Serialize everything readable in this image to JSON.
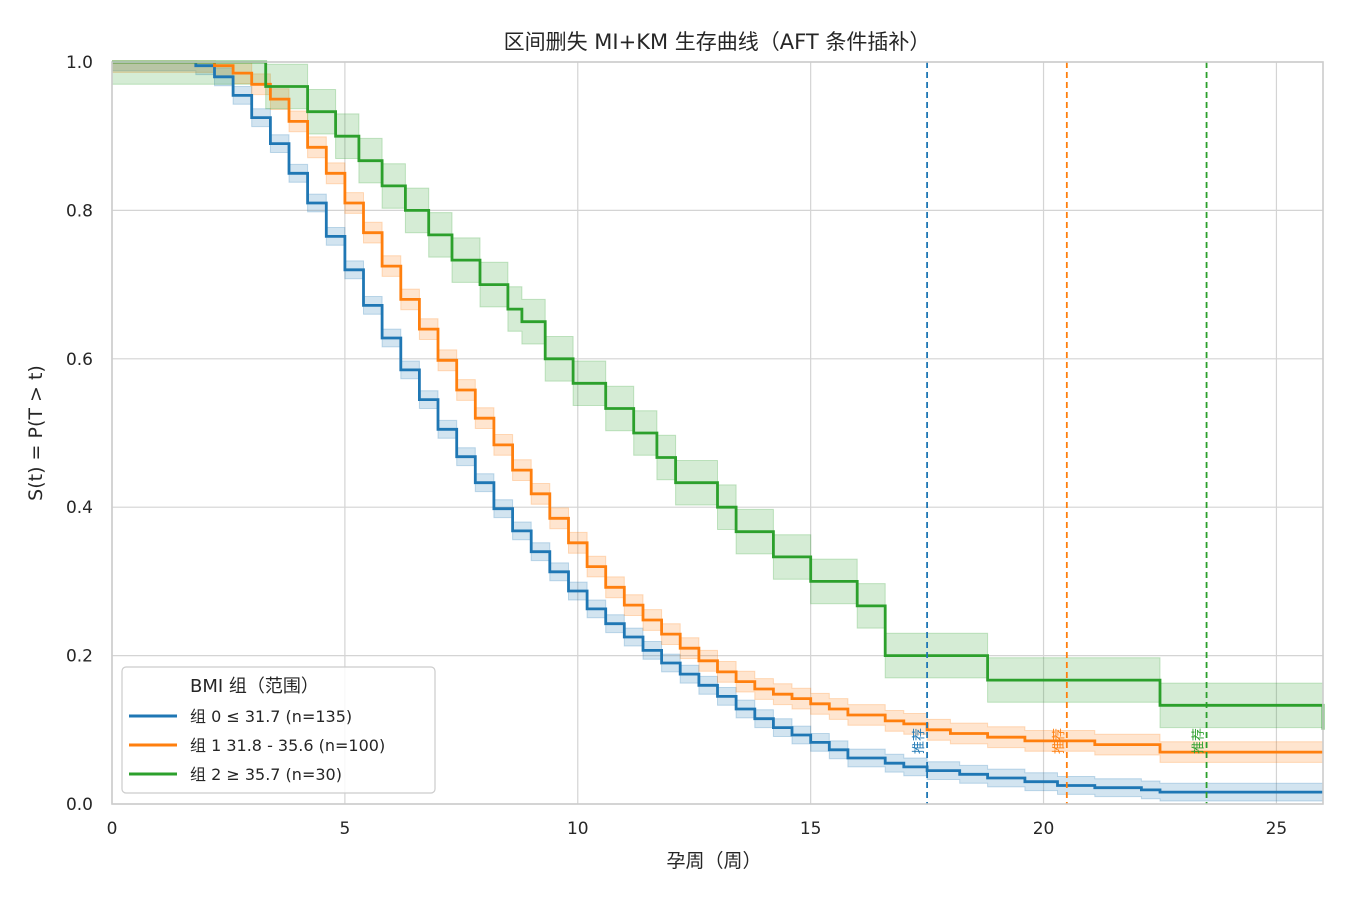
{
  "chart_data": {
    "type": "line",
    "title": "区间删失 MI+KM 生存曲线（AFT 条件插补）",
    "xlabel": "孕周（周）",
    "ylabel": "S(t) = P(T > t)",
    "xlim": [
      0,
      26
    ],
    "ylim": [
      0,
      1.0
    ],
    "xticks": [
      0,
      5,
      10,
      15,
      20,
      25
    ],
    "yticks": [
      0.0,
      0.2,
      0.4,
      0.6,
      0.8,
      1.0
    ],
    "xtick_labels": [
      "0",
      "5",
      "10",
      "15",
      "20",
      "25"
    ],
    "ytick_labels": [
      "0.0",
      "0.2",
      "0.4",
      "0.6",
      "0.8",
      "1.0"
    ],
    "grid": true,
    "legend": {
      "title": "BMI 组（范围）",
      "position": "lower-left"
    },
    "step": true,
    "series": [
      {
        "name": "组 0 ≤ 31.7 (n=135)",
        "color": "#1f77b4",
        "band_halfwidth": 0.012,
        "x": [
          0,
          1.8,
          2.2,
          2.6,
          3.0,
          3.4,
          3.8,
          4.2,
          4.6,
          5.0,
          5.4,
          5.8,
          6.2,
          6.6,
          7.0,
          7.4,
          7.8,
          8.2,
          8.6,
          9.0,
          9.4,
          9.8,
          10.2,
          10.6,
          11.0,
          11.4,
          11.8,
          12.2,
          12.6,
          13.0,
          13.4,
          13.8,
          14.2,
          14.6,
          15.0,
          15.4,
          15.8,
          16.6,
          17.0,
          17.5,
          18.2,
          18.8,
          19.6,
          20.3,
          21.1,
          22.1,
          22.5,
          26.0
        ],
        "y": [
          1.0,
          0.995,
          0.98,
          0.955,
          0.925,
          0.89,
          0.85,
          0.81,
          0.765,
          0.72,
          0.672,
          0.628,
          0.585,
          0.545,
          0.505,
          0.468,
          0.433,
          0.398,
          0.368,
          0.34,
          0.313,
          0.287,
          0.263,
          0.243,
          0.225,
          0.207,
          0.19,
          0.175,
          0.16,
          0.145,
          0.128,
          0.115,
          0.103,
          0.093,
          0.083,
          0.073,
          0.062,
          0.055,
          0.05,
          0.045,
          0.04,
          0.035,
          0.03,
          0.025,
          0.022,
          0.019,
          0.016,
          0.016
        ]
      },
      {
        "name": "组 1 31.8 - 35.6 (n=100)",
        "color": "#ff7f0e",
        "band_halfwidth": 0.014,
        "x": [
          0,
          2.2,
          2.6,
          3.0,
          3.4,
          3.8,
          4.2,
          4.6,
          5.0,
          5.4,
          5.8,
          6.2,
          6.6,
          7.0,
          7.4,
          7.8,
          8.2,
          8.6,
          9.0,
          9.4,
          9.8,
          10.2,
          10.6,
          11.0,
          11.4,
          11.8,
          12.2,
          12.6,
          13.0,
          13.4,
          13.8,
          14.2,
          14.6,
          15.0,
          15.4,
          15.8,
          16.6,
          17.0,
          17.5,
          18.0,
          18.8,
          19.6,
          21.1,
          22.5,
          26.0
        ],
        "y": [
          1.0,
          0.995,
          0.985,
          0.97,
          0.95,
          0.92,
          0.885,
          0.85,
          0.81,
          0.77,
          0.725,
          0.68,
          0.64,
          0.598,
          0.558,
          0.52,
          0.484,
          0.45,
          0.418,
          0.385,
          0.352,
          0.32,
          0.292,
          0.268,
          0.248,
          0.229,
          0.21,
          0.193,
          0.178,
          0.165,
          0.155,
          0.148,
          0.142,
          0.135,
          0.128,
          0.12,
          0.112,
          0.108,
          0.1,
          0.095,
          0.09,
          0.085,
          0.08,
          0.07,
          0.07
        ]
      },
      {
        "name": "组 2 ≥ 35.7 (n=30)",
        "color": "#2ca02c",
        "band_halfwidth": 0.03,
        "x": [
          0,
          3.3,
          4.2,
          4.8,
          5.3,
          5.8,
          6.3,
          6.8,
          7.3,
          7.9,
          8.5,
          8.8,
          9.3,
          9.9,
          10.6,
          11.2,
          11.7,
          12.1,
          13.0,
          13.4,
          14.2,
          15.0,
          16.0,
          16.6,
          18.0,
          18.8,
          19.8,
          22.5,
          26.0
        ],
        "y": [
          1.0,
          0.967,
          0.933,
          0.9,
          0.867,
          0.833,
          0.8,
          0.767,
          0.733,
          0.7,
          0.667,
          0.65,
          0.6,
          0.567,
          0.533,
          0.5,
          0.467,
          0.433,
          0.4,
          0.367,
          0.333,
          0.3,
          0.267,
          0.2,
          0.2,
          0.167,
          0.167,
          0.133,
          0.1
        ]
      }
    ],
    "vlines": [
      {
        "x": 17.5,
        "color": "#1f77b4",
        "label": "推荐"
      },
      {
        "x": 20.5,
        "color": "#ff7f0e",
        "label": "推荐"
      },
      {
        "x": 23.5,
        "color": "#2ca02c",
        "label": "推荐"
      }
    ]
  }
}
